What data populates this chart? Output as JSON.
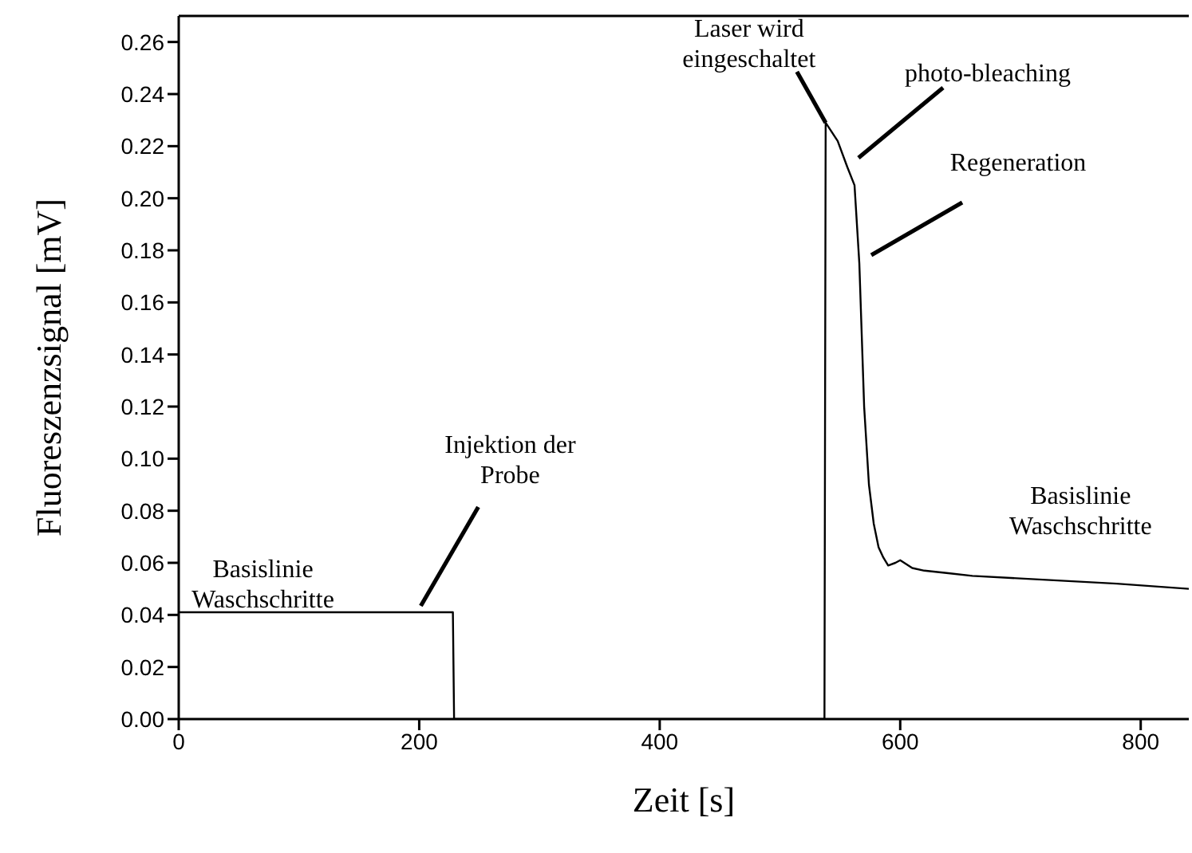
{
  "chart_data": {
    "type": "line",
    "xlabel": "Zeit [s]",
    "ylabel": "Fluoreszenzsignal [mV]",
    "x": [
      0,
      50,
      100,
      150,
      200,
      228,
      229,
      300,
      400,
      537,
      538,
      548,
      556,
      562,
      566,
      570,
      574,
      578,
      582,
      586,
      590,
      596,
      600,
      610,
      620,
      640,
      660,
      700,
      740,
      780,
      840
    ],
    "series": [
      {
        "color": "#000000",
        "values": [
          0.041,
          0.041,
          0.041,
          0.041,
          0.041,
          0.041,
          0,
          0,
          0,
          0,
          0.229,
          0.222,
          0.212,
          0.205,
          0.175,
          0.12,
          0.09,
          0.075,
          0.066,
          0.062,
          0.059,
          0.06,
          0.061,
          0.058,
          0.057,
          0.056,
          0.055,
          0.054,
          0.053,
          0.052,
          0.05
        ]
      }
    ],
    "xlim": [
      0,
      840
    ],
    "xticks": [
      0,
      200,
      400,
      600,
      800
    ],
    "ylim": [
      0,
      0.27
    ],
    "yticks": [
      {
        "value": 0,
        "label": "0.00"
      },
      {
        "value": 0.02,
        "label": "0.02"
      },
      {
        "value": 0.04,
        "label": "0.04"
      },
      {
        "value": 0.06,
        "label": "0.06"
      },
      {
        "value": 0.08,
        "label": "0.08"
      },
      {
        "value": 0.1,
        "label": "0.10"
      },
      {
        "value": 0.12,
        "label": "0.12"
      },
      {
        "value": 0.14,
        "label": "0.14"
      },
      {
        "value": 0.16,
        "label": "0.16"
      },
      {
        "value": 0.18,
        "label": "0.18"
      },
      {
        "value": 0.2,
        "label": "0.20"
      },
      {
        "value": 0.22,
        "label": "0.22"
      },
      {
        "value": 0.24,
        "label": "0.24"
      },
      {
        "value": 0.26,
        "label": "0.26"
      }
    ],
    "marker": "none",
    "line_style": "solid",
    "annotations": [
      {
        "text": "Basislinie\nWaschschritte",
        "x": 70,
        "y": 0.041
      },
      {
        "text": "Injektion der\nProbe",
        "x": 200,
        "y": 0.041
      },
      {
        "text": "Laser wird\neingeschaltet",
        "x": 538,
        "y": 0.229
      },
      "photo-bleaching",
      "Regeneration",
      {
        "text": "Basislinie\nWaschschritte",
        "x": 750,
        "y": 0.052
      }
    ]
  }
}
